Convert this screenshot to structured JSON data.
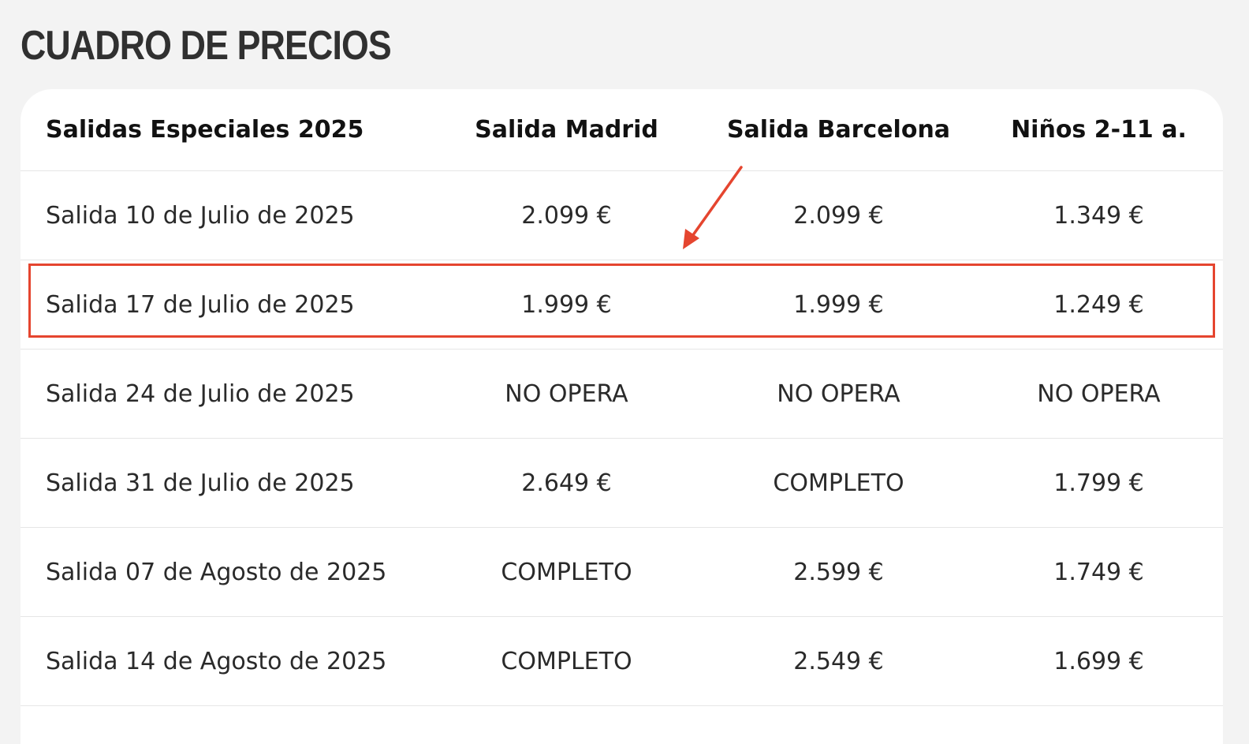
{
  "page": {
    "title": "CUADRO DE PRECIOS"
  },
  "table": {
    "headers": [
      "Salidas Especiales 2025",
      "Salida Madrid",
      "Salida Barcelona",
      "Niños 2-11 a."
    ],
    "rows": [
      [
        "Salida 10 de Julio de 2025",
        "2.099 €",
        "2.099 €",
        "1.349 €"
      ],
      [
        "Salida 17 de Julio de 2025",
        "1.999 €",
        "1.999 €",
        "1.249 €"
      ],
      [
        "Salida 24 de Julio de 2025",
        "NO OPERA",
        "NO OPERA",
        "NO OPERA"
      ],
      [
        "Salida 31 de Julio de 2025",
        "2.649 €",
        "COMPLETO",
        "1.799 €"
      ],
      [
        "Salida 07 de Agosto de 2025",
        "COMPLETO",
        "2.599 €",
        "1.749 €"
      ],
      [
        "Salida 14 de Agosto de 2025",
        "COMPLETO",
        "2.549 €",
        "1.699 €"
      ]
    ],
    "highlighted_row_index": 1
  },
  "colors": {
    "background": "#f3f3f3",
    "card": "#ffffff",
    "annotation": "#e5452f",
    "title": "#303030"
  }
}
